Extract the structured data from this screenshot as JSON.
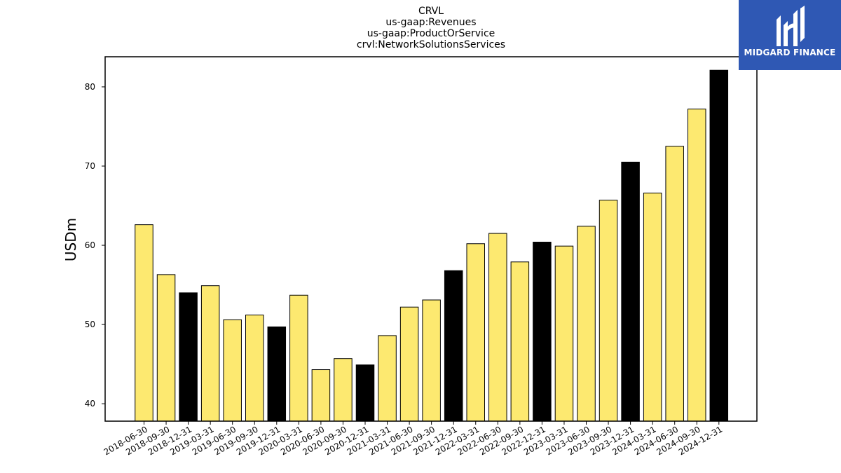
{
  "colors": {
    "regular_bar": "#fde970",
    "q4_bar": "#000000",
    "logo_bg": "#2f58b4"
  },
  "logo": {
    "text": "MIDGARD FINANCE",
    "icon": "midgard-logo-icon"
  },
  "chart_data": {
    "type": "bar",
    "title_lines": [
      "CRVL",
      "us-gaap:Revenues",
      "us-gaap:ProductOrService",
      "crvl:NetworkSolutionsServices"
    ],
    "xlabel": "",
    "ylabel": "USDm",
    "ylim": [
      37.8,
      83.8
    ],
    "yticks": [
      40,
      50,
      60,
      70,
      80
    ],
    "grid": false,
    "categories": [
      "2018-06-30",
      "2018-09-30",
      "2018-12-31",
      "2019-03-31",
      "2019-06-30",
      "2019-09-30",
      "2019-12-31",
      "2020-03-31",
      "2020-06-30",
      "2020-09-30",
      "2020-12-31",
      "2021-03-31",
      "2021-06-30",
      "2021-09-30",
      "2021-12-31",
      "2022-03-31",
      "2022-06-30",
      "2022-09-30",
      "2022-12-31",
      "2023-03-31",
      "2023-06-30",
      "2023-09-30",
      "2023-12-31",
      "2024-03-31",
      "2024-06-30",
      "2024-09-30",
      "2024-12-31"
    ],
    "values": [
      62.6,
      56.3,
      54.0,
      54.9,
      50.6,
      51.2,
      49.7,
      53.7,
      44.3,
      45.7,
      44.9,
      48.6,
      52.2,
      53.1,
      56.8,
      60.2,
      61.5,
      57.9,
      60.4,
      59.9,
      62.4,
      65.7,
      70.5,
      66.6,
      72.5,
      77.2,
      82.1
    ],
    "highlight_q4": [
      false,
      false,
      true,
      false,
      false,
      false,
      true,
      false,
      false,
      false,
      true,
      false,
      false,
      false,
      true,
      false,
      false,
      false,
      true,
      false,
      false,
      false,
      true,
      false,
      false,
      false,
      true
    ]
  }
}
